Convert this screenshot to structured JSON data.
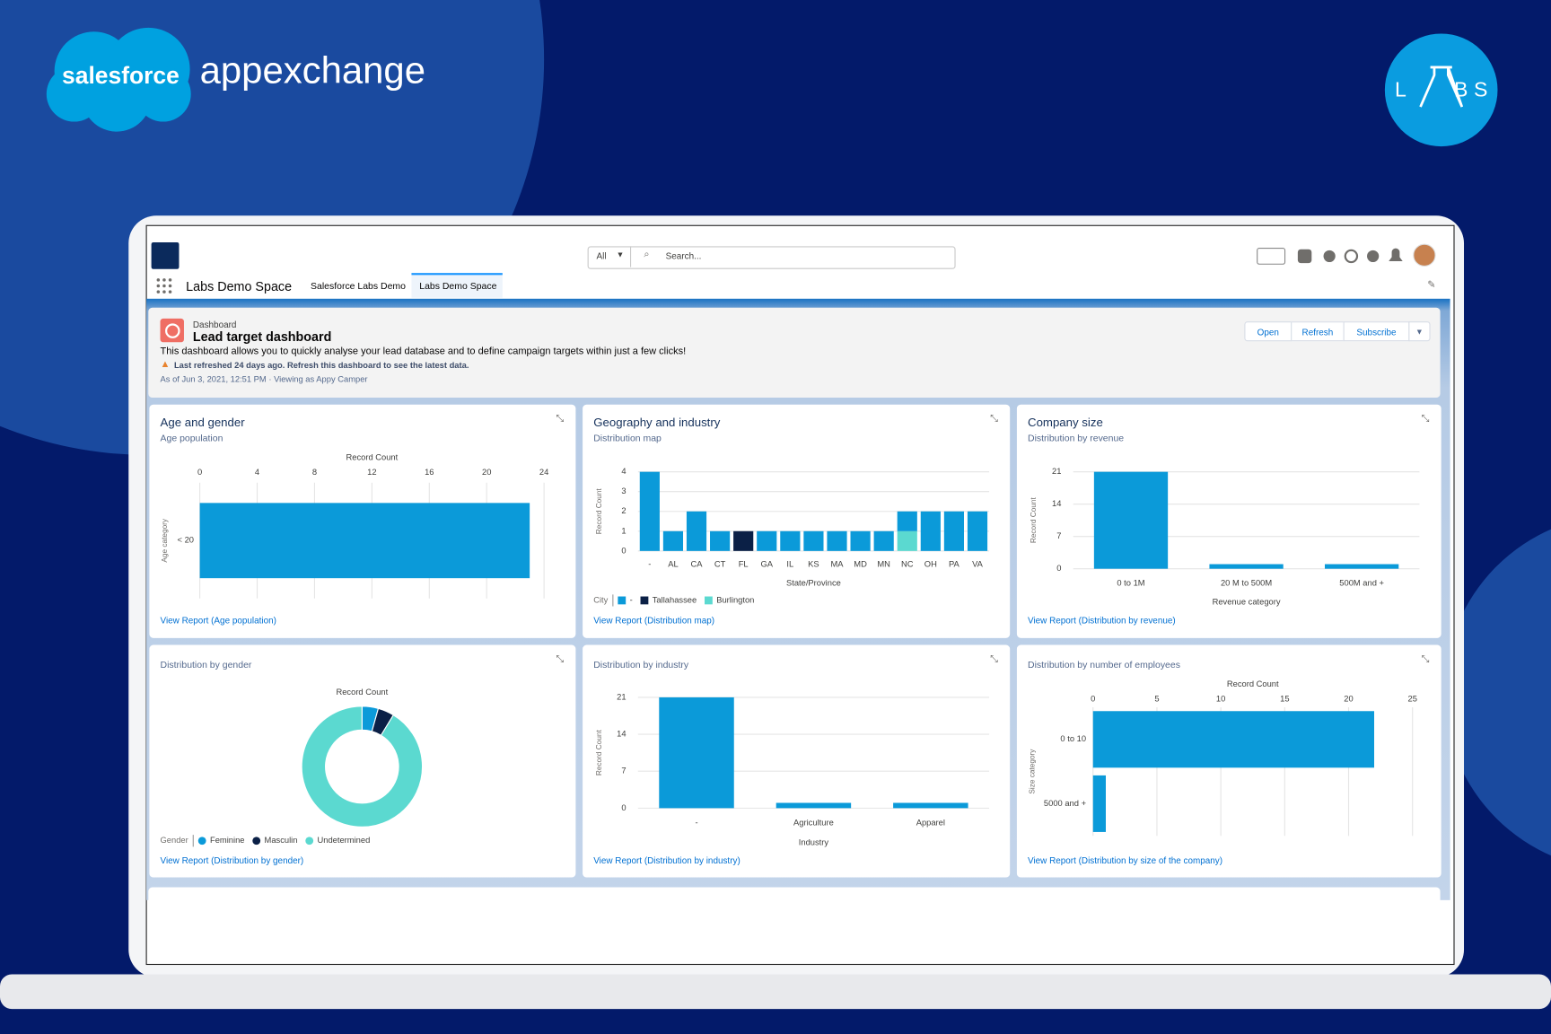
{
  "brand": {
    "salesforce": "salesforce",
    "appexchange": "appexchange",
    "labs_letters": [
      "L",
      "B",
      "S"
    ]
  },
  "app": {
    "search_scope": "All",
    "search_placeholder": "Search...",
    "app_name": "Labs Demo Space",
    "tabs": [
      "Salesforce Labs Demo",
      "Labs Demo Space"
    ]
  },
  "dashboard": {
    "label": "Dashboard",
    "title": "Lead target dashboard",
    "description": "This dashboard allows you to quickly analyse your lead database and to define campaign targets within just a few clicks!",
    "warning": "Last refreshed 24 days ago. Refresh this dashboard to see the latest data.",
    "as_of": "As of Jun 3, 2021, 12:51 PM · Viewing as Appy Camper",
    "buttons": [
      "Open",
      "Refresh",
      "Subscribe"
    ]
  },
  "widgets": [
    {
      "title": "Age and gender",
      "subtitle": "Age population",
      "chart": {
        "type": "hbar",
        "x_label": "Record Count",
        "y_label": "Age category",
        "categories": [
          "< 20"
        ],
        "values": [
          23
        ],
        "color": "#0b9ad9",
        "xlim": [
          0,
          24
        ],
        "xticks": [
          0,
          4,
          8,
          12,
          16,
          20,
          24
        ]
      },
      "link": "View Report (Age population)"
    },
    {
      "title": "Geography and industry",
      "subtitle": "Distribution map",
      "chart": {
        "type": "stacked_bar",
        "x_label": "State/Province",
        "y_label": "Record Count",
        "legend_title": "City",
        "categories": [
          "-",
          "AL",
          "CA",
          "CT",
          "FL",
          "GA",
          "IL",
          "KS",
          "MA",
          "MD",
          "MN",
          "NC",
          "OH",
          "PA",
          "VA"
        ],
        "series": [
          {
            "name": "-",
            "color": "#0b9ad9",
            "values": [
              4,
              1,
              2,
              1,
              0,
              1,
              1,
              1,
              1,
              1,
              1,
              1,
              2,
              2,
              2
            ]
          },
          {
            "name": "Tallahassee",
            "color": "#0b2046",
            "values": [
              0,
              0,
              0,
              0,
              1,
              0,
              0,
              0,
              0,
              0,
              0,
              0,
              0,
              0,
              0
            ]
          },
          {
            "name": "Burlington",
            "color": "#5bd9d0",
            "values": [
              0,
              0,
              0,
              0,
              0,
              0,
              0,
              0,
              0,
              0,
              0,
              1,
              0,
              0,
              0
            ]
          }
        ],
        "ylim": [
          0,
          4
        ],
        "yticks": [
          0,
          1,
          2,
          3,
          4
        ]
      },
      "link": "View Report (Distribution map)"
    },
    {
      "title": "Company size",
      "subtitle": "Distribution by revenue",
      "chart": {
        "type": "bar",
        "x_label": "Revenue category",
        "y_label": "Record Count",
        "categories": [
          "0 to 1M",
          "20 M to 500M",
          "500M and +"
        ],
        "values": [
          21,
          1,
          1
        ],
        "color": "#0b9ad9",
        "ylim": [
          0,
          21
        ],
        "yticks": [
          0,
          7,
          14,
          21
        ]
      },
      "link": "View Report (Distribution by revenue)"
    },
    {
      "subtitle": "Distribution by gender",
      "chart": {
        "type": "donut",
        "label": "Record Count",
        "legend_title": "Gender",
        "categories": [
          "Feminine",
          "Masculin",
          "Undetermined"
        ],
        "values": [
          1,
          1,
          21
        ],
        "colors": [
          "#0b9ad9",
          "#0b2046",
          "#5bd9d0"
        ]
      },
      "link": "View Report (Distribution by gender)"
    },
    {
      "subtitle": "Distribution by industry",
      "chart": {
        "type": "bar",
        "x_label": "Industry",
        "y_label": "Record Count",
        "categories": [
          "-",
          "Agriculture",
          "Apparel"
        ],
        "values": [
          21,
          1,
          1
        ],
        "color": "#0b9ad9",
        "ylim": [
          0,
          21
        ],
        "yticks": [
          0,
          7,
          14,
          21
        ]
      },
      "link": "View Report (Distribution by industry)"
    },
    {
      "subtitle": "Distribution by number of employees",
      "chart": {
        "type": "hbar",
        "x_label": "Record Count",
        "y_label": "Size category",
        "categories": [
          "0 to 10",
          "5000 and +"
        ],
        "values": [
          22,
          1
        ],
        "color": "#0b9ad9",
        "xlim": [
          0,
          25
        ],
        "xticks": [
          0,
          5,
          10,
          15,
          20,
          25
        ]
      },
      "link": "View Report (Distribution by size of the company)"
    }
  ]
}
